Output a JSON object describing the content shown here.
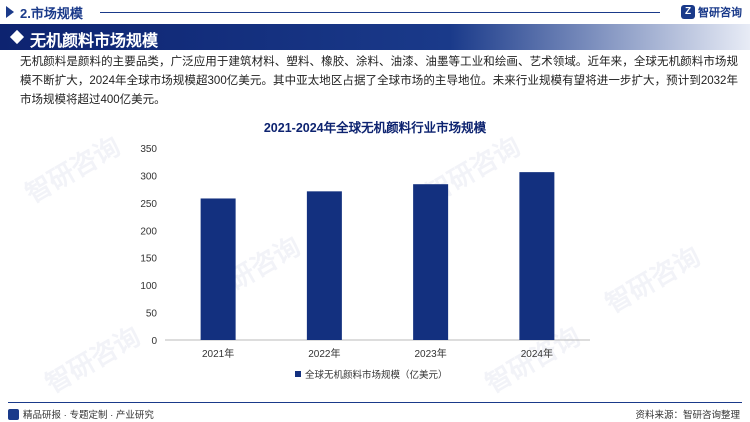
{
  "header": {
    "section_title": "2.市场规模",
    "brand_name": "智研咨询"
  },
  "banner": {
    "title": "无机颜料市场规模"
  },
  "intro": {
    "text": "无机颜料是颜料的主要品类，广泛应用于建筑材料、塑料、橡胶、涂料、油漆、油墨等工业和绘画、艺术领域。近年来，全球无机颜料市场规模不断扩大，2024年全球市场规模超300亿美元。其中亚太地区占据了全球市场的主导地位。未来行业规模有望将进一步扩大，预计到2032年市场规模将超过400亿美元。"
  },
  "watermark": {
    "text": "智研咨询"
  },
  "chart_data": {
    "type": "bar",
    "title": "2021-2024年全球无机颜料行业市场规模",
    "categories": [
      "2021年",
      "2022年",
      "2023年",
      "2024年"
    ],
    "series": [
      {
        "name": "全球无机颜料市场规模（亿美元）",
        "values": [
          258,
          271,
          284,
          306
        ],
        "color": "#13307f"
      }
    ],
    "ylim": [
      0,
      350
    ],
    "yticks": [
      0,
      50,
      100,
      150,
      200,
      250,
      300,
      350
    ],
    "grid": false,
    "legend": "bottom"
  },
  "footer": {
    "tagline": "精品研报 · 专题定制 · 产业研究",
    "source": "资料来源：智研咨询整理"
  }
}
